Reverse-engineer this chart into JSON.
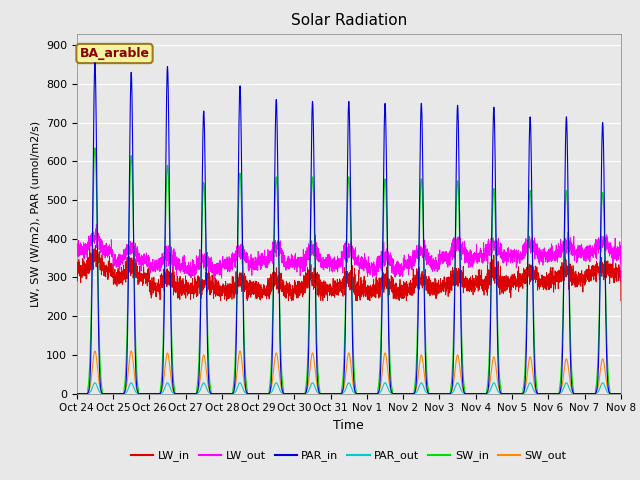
{
  "title": "Solar Radiation",
  "ylabel": "LW, SW (W/m2), PAR (umol/m2/s)",
  "xlabel": "Time",
  "annotation": "BA_arable",
  "ylim": [
    0,
    930
  ],
  "yticks": [
    0,
    100,
    200,
    300,
    400,
    500,
    600,
    700,
    800,
    900
  ],
  "x_tick_labels": [
    "Oct 24",
    "Oct 25",
    "Oct 26",
    "Oct 27",
    "Oct 28",
    "Oct 29",
    "Oct 30",
    "Oct 31",
    "Nov 1",
    "Nov 2",
    "Nov 3",
    "Nov 4",
    "Nov 5",
    "Nov 6",
    "Nov 7",
    "Nov 8"
  ],
  "colors": {
    "LW_in": "#dd0000",
    "LW_out": "#ff00ff",
    "PAR_in": "#0000dd",
    "PAR_out": "#00cccc",
    "SW_in": "#00dd00",
    "SW_out": "#ff8800"
  },
  "n_days": 15,
  "pts_per_day": 288,
  "par_in_peaks": [
    855,
    830,
    845,
    730,
    795,
    760,
    755,
    755,
    750,
    750,
    745,
    740,
    715,
    715,
    700
  ],
  "sw_in_peaks": [
    635,
    615,
    590,
    545,
    570,
    560,
    560,
    560,
    555,
    555,
    550,
    530,
    525,
    525,
    520
  ],
  "sw_out_peaks": [
    110,
    110,
    105,
    100,
    110,
    105,
    105,
    105,
    105,
    100,
    100,
    95,
    95,
    90,
    90
  ],
  "lw_in_day_base": [
    355,
    330,
    300,
    285,
    290,
    295,
    300,
    295,
    290,
    295,
    305,
    310,
    315,
    320,
    325
  ],
  "lw_in_night_base": [
    320,
    300,
    275,
    270,
    265,
    265,
    270,
    270,
    265,
    270,
    280,
    285,
    290,
    295,
    310
  ],
  "lw_out_day_base": [
    405,
    375,
    355,
    345,
    365,
    375,
    375,
    370,
    355,
    370,
    385,
    385,
    385,
    385,
    390
  ],
  "lw_out_night_base": [
    370,
    345,
    330,
    320,
    335,
    340,
    340,
    335,
    320,
    335,
    350,
    355,
    355,
    360,
    365
  ],
  "plot_bg": "#e8e8e8",
  "fig_bg": "#e8e8e8"
}
